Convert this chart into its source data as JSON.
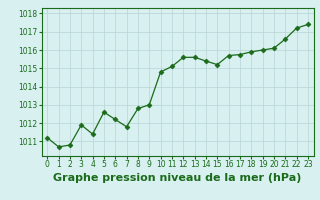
{
  "x": [
    0,
    1,
    2,
    3,
    4,
    5,
    6,
    7,
    8,
    9,
    10,
    11,
    12,
    13,
    14,
    15,
    16,
    17,
    18,
    19,
    20,
    21,
    22,
    23
  ],
  "y": [
    1011.2,
    1010.7,
    1010.8,
    1011.9,
    1011.4,
    1012.6,
    1012.2,
    1011.8,
    1012.8,
    1013.0,
    1014.8,
    1015.1,
    1015.6,
    1015.6,
    1015.4,
    1015.2,
    1015.7,
    1015.75,
    1015.9,
    1016.0,
    1016.1,
    1016.6,
    1017.2,
    1017.4
  ],
  "line_color": "#1a6b1a",
  "marker": "D",
  "marker_size": 2.5,
  "bg_color": "#d8f0f0",
  "grid_color": "#b8d4d4",
  "xlabel": "Graphe pression niveau de la mer (hPa)",
  "ylabel": "",
  "ylim_min": 1010.2,
  "ylim_max": 1018.3,
  "yticks": [
    1011,
    1012,
    1013,
    1014,
    1015,
    1016,
    1017,
    1018
  ],
  "xticks": [
    0,
    1,
    2,
    3,
    4,
    5,
    6,
    7,
    8,
    9,
    10,
    11,
    12,
    13,
    14,
    15,
    16,
    17,
    18,
    19,
    20,
    21,
    22,
    23
  ],
  "tick_label_size": 5.5,
  "xlabel_fontsize": 8.0,
  "label_color": "#1a6b1a"
}
